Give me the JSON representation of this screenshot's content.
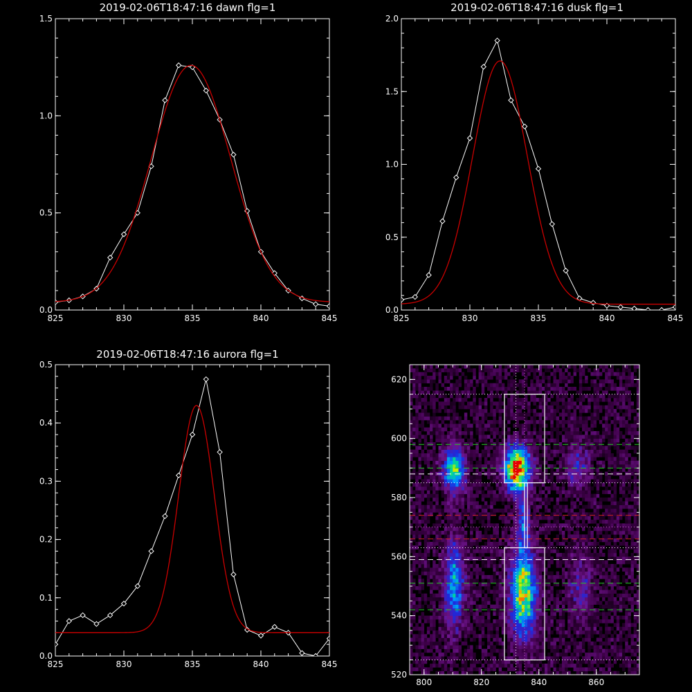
{
  "chart_data": [
    {
      "type": "line",
      "title": "2019-02-06T18:47:16 dawn flg=1",
      "xlabel": "",
      "ylabel": "",
      "xlim": [
        825,
        845
      ],
      "ylim": [
        0,
        1.5
      ],
      "xticks": [
        "825",
        "830",
        "835",
        "840",
        "845"
      ],
      "yticks": [
        "0.0",
        "0.5",
        "1.0",
        "1.5"
      ],
      "grid": false,
      "series": [
        {
          "color": "#ffffff",
          "marker": "diamond",
          "x": [
            825,
            826,
            827,
            828,
            829,
            830,
            831,
            832,
            833,
            834,
            835,
            836,
            837,
            838,
            839,
            840,
            841,
            842,
            843,
            844,
            845
          ],
          "y": [
            0.04,
            0.05,
            0.07,
            0.11,
            0.27,
            0.39,
            0.5,
            0.74,
            1.08,
            1.26,
            1.25,
            1.13,
            0.98,
            0.8,
            0.51,
            0.3,
            0.19,
            0.1,
            0.06,
            0.03,
            0.02
          ]
        },
        {
          "color": "#cc0000",
          "marker": "none",
          "gauss": {
            "amp": 1.22,
            "center": 834.9,
            "sigma": 2.9,
            "offset": 0.04
          }
        }
      ]
    },
    {
      "type": "line",
      "title": "2019-02-06T18:47:16 dusk flg=1",
      "xlabel": "",
      "ylabel": "",
      "xlim": [
        825,
        845
      ],
      "ylim": [
        0,
        2.0
      ],
      "xticks": [
        "825",
        "830",
        "835",
        "840",
        "845"
      ],
      "yticks": [
        "0.0",
        "0.5",
        "1.0",
        "1.5",
        "2.0"
      ],
      "grid": false,
      "series": [
        {
          "color": "#ffffff",
          "marker": "diamond",
          "x": [
            825,
            826,
            827,
            828,
            829,
            830,
            831,
            832,
            833,
            834,
            835,
            836,
            837,
            838,
            839,
            840,
            841,
            842,
            843,
            844,
            845
          ],
          "y": [
            0.07,
            0.09,
            0.24,
            0.61,
            0.91,
            1.18,
            1.67,
            1.85,
            1.44,
            1.26,
            0.97,
            0.59,
            0.27,
            0.08,
            0.05,
            0.03,
            0.02,
            0.01,
            0.0,
            0.0,
            0.02
          ]
        },
        {
          "color": "#cc0000",
          "marker": "none",
          "gauss": {
            "amp": 1.67,
            "center": 832.2,
            "sigma": 2.0,
            "offset": 0.04
          }
        }
      ]
    },
    {
      "type": "line",
      "title": "2019-02-06T18:47:16 aurora flg=1",
      "xlabel": "",
      "ylabel": "",
      "xlim": [
        825,
        845
      ],
      "ylim": [
        0,
        0.5
      ],
      "xticks": [
        "825",
        "830",
        "835",
        "840",
        "845"
      ],
      "yticks": [
        "0.0",
        "0.1",
        "0.2",
        "0.3",
        "0.4",
        "0.5"
      ],
      "grid": false,
      "series": [
        {
          "color": "#ffffff",
          "marker": "diamond",
          "x": [
            825,
            826,
            827,
            828,
            829,
            830,
            831,
            832,
            833,
            834,
            835,
            836,
            837,
            838,
            839,
            840,
            841,
            842,
            843,
            844,
            845
          ],
          "y": [
            0.02,
            0.06,
            0.07,
            0.055,
            0.07,
            0.09,
            0.12,
            0.18,
            0.24,
            0.31,
            0.38,
            0.475,
            0.35,
            0.14,
            0.045,
            0.035,
            0.05,
            0.04,
            0.005,
            0.0,
            0.03
          ]
        },
        {
          "color": "#cc0000",
          "marker": "none",
          "gauss": {
            "amp": 0.39,
            "center": 835.3,
            "sigma": 1.3,
            "offset": 0.04
          }
        }
      ]
    },
    {
      "type": "heatmap",
      "title": "",
      "xlabel": "",
      "ylabel": "",
      "xlim": [
        795,
        875
      ],
      "ylim": [
        520,
        625
      ],
      "xticks": [
        "800",
        "820",
        "840",
        "860"
      ],
      "yticks": [
        "520",
        "540",
        "560",
        "580",
        "600",
        "620"
      ],
      "colormap": "purple-blue-green-yellow-red",
      "blobs": [
        {
          "x": 810,
          "y": 589,
          "sx": 2.6,
          "sy": 5,
          "amp": 0.6
        },
        {
          "x": 832,
          "y": 589,
          "sx": 3,
          "sy": 5,
          "amp": 1.0
        },
        {
          "x": 853,
          "y": 590,
          "sx": 2.8,
          "sy": 5,
          "amp": 0.25
        },
        {
          "x": 810,
          "y": 550,
          "sx": 2.4,
          "sy": 10,
          "amp": 0.45
        },
        {
          "x": 834,
          "y": 547,
          "sx": 3,
          "sy": 10,
          "amp": 0.75
        },
        {
          "x": 854,
          "y": 549,
          "sx": 2.8,
          "sy": 8,
          "amp": 0.2
        },
        {
          "x": 834,
          "y": 570,
          "sx": 1.5,
          "sy": 6,
          "amp": 0.35
        }
      ],
      "boxes": [
        {
          "x0": 828,
          "x1": 842,
          "y0": 585,
          "y1": 615
        },
        {
          "x0": 835,
          "x1": 836,
          "y0": 563,
          "y1": 585
        },
        {
          "x0": 828,
          "x1": 842,
          "y0": 525,
          "y1": 563
        }
      ],
      "hlines": [
        {
          "y": 615,
          "color": "#ffffff",
          "style": "dotted"
        },
        {
          "y": 598,
          "color": "#22cc22",
          "style": "dashed"
        },
        {
          "y": 590,
          "color": "#22cc22",
          "style": "dashed"
        },
        {
          "y": 588,
          "color": "#ffffff",
          "style": "dashed"
        },
        {
          "y": 585,
          "color": "#ffffff",
          "style": "dotted"
        },
        {
          "y": 574,
          "color": "#cc2222",
          "style": "dashed"
        },
        {
          "y": 570,
          "color": "#cc66cc",
          "style": "dotted"
        },
        {
          "y": 566,
          "color": "#cc2222",
          "style": "dashed"
        },
        {
          "y": 563,
          "color": "#ffffff",
          "style": "dotted"
        },
        {
          "y": 559,
          "color": "#ffffff",
          "style": "dashed"
        },
        {
          "y": 551,
          "color": "#22cc22",
          "style": "dashed"
        },
        {
          "y": 542,
          "color": "#22cc22",
          "style": "dashed"
        },
        {
          "y": 525,
          "color": "#ffffff",
          "style": "dotted"
        }
      ],
      "vlines": [
        {
          "x": 832,
          "color": "#ffffff",
          "style": "dotted"
        },
        {
          "x": 835,
          "color": "#cc66cc",
          "style": "dotted"
        }
      ]
    }
  ]
}
